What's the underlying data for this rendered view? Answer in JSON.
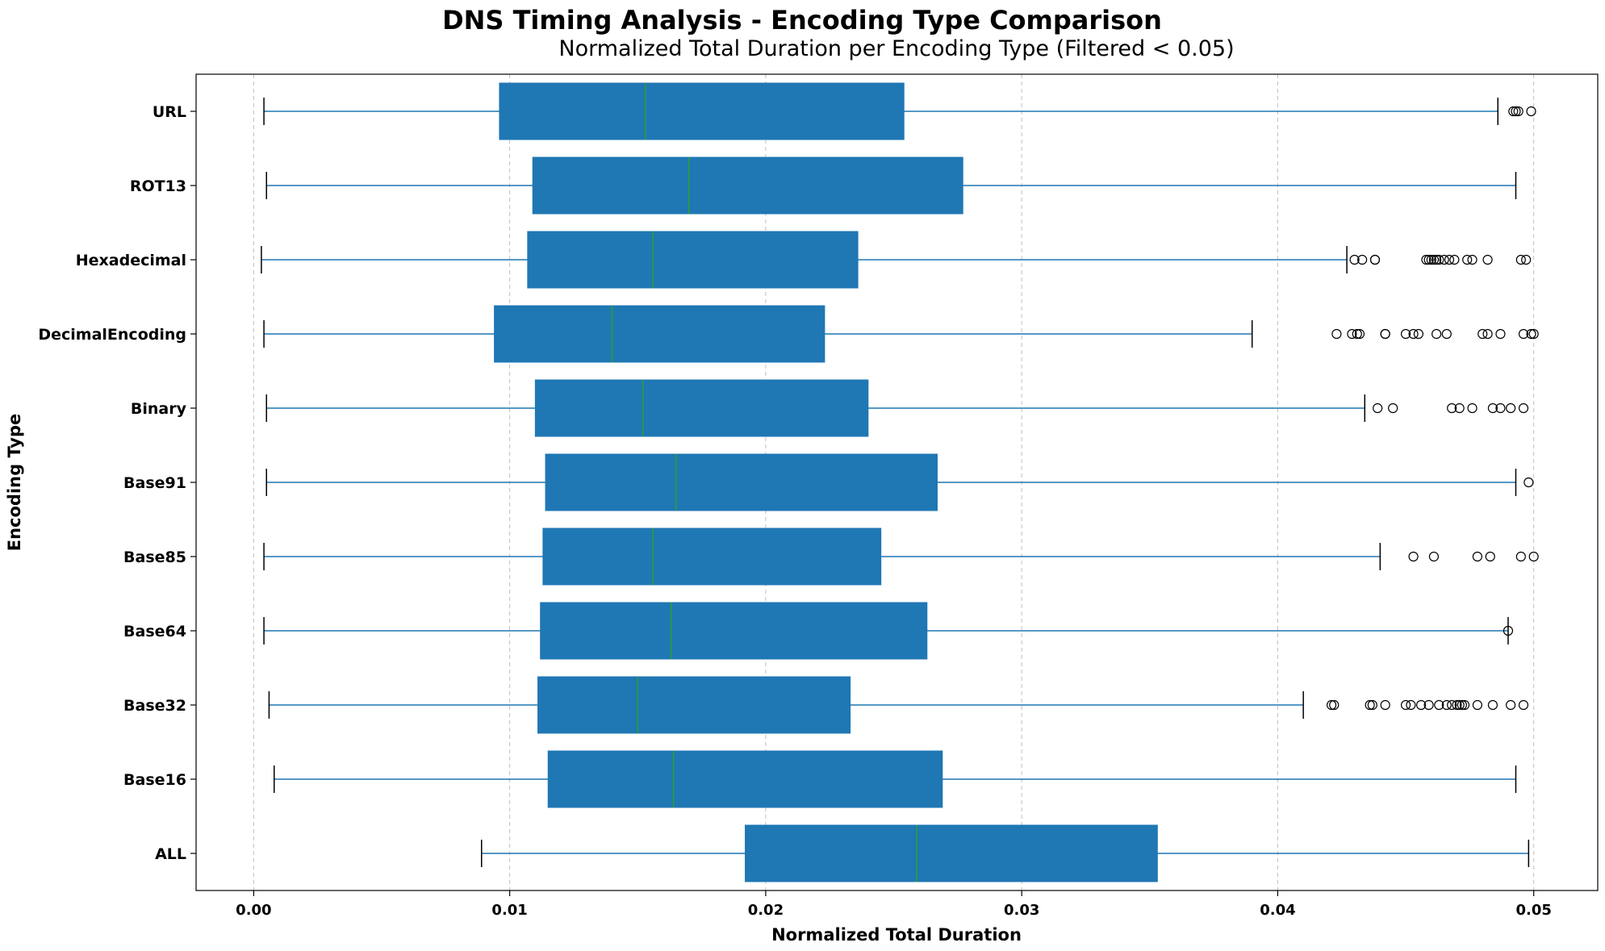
{
  "chart_data": {
    "type": "box",
    "orientation": "horizontal",
    "suptitle": "DNS Timing Analysis - Encoding Type Comparison",
    "title": "Normalized Total Duration per Encoding Type (Filtered < 0.05)",
    "xlabel": "Normalized Total Duration",
    "ylabel": "Encoding Type",
    "xlim": [
      -0.00225,
      0.0525
    ],
    "xticks": [
      0.0,
      0.01,
      0.02,
      0.03,
      0.04,
      0.05
    ],
    "xtick_labels": [
      "0.00",
      "0.01",
      "0.02",
      "0.03",
      "0.04",
      "0.05"
    ],
    "grid": "x-dashed",
    "colors": {
      "box": "#1f77b4",
      "median": "#2ca02c",
      "whisker": "#1f77b4",
      "cap": "#000000",
      "flier": "#000000",
      "grid": "#b0b0b0",
      "frame": "#000000"
    },
    "boxes": [
      {
        "label": "URL",
        "whislo": 0.0004,
        "q1": 0.0096,
        "med": 0.0153,
        "q3": 0.0254,
        "whishi": 0.0486,
        "fliers": [
          0.0492,
          0.0493,
          0.0494,
          0.0499
        ]
      },
      {
        "label": "ROT13",
        "whislo": 0.0005,
        "q1": 0.0109,
        "med": 0.017,
        "q3": 0.0277,
        "whishi": 0.0493,
        "fliers": []
      },
      {
        "label": "Hexadecimal",
        "whislo": 0.0003,
        "q1": 0.0107,
        "med": 0.0156,
        "q3": 0.0236,
        "whishi": 0.0427,
        "fliers": [
          0.043,
          0.0433,
          0.0438,
          0.0438,
          0.0458,
          0.0459,
          0.046,
          0.0461,
          0.0462,
          0.0463,
          0.0465,
          0.0467,
          0.0469,
          0.0474,
          0.0476,
          0.0482,
          0.0495,
          0.0497
        ]
      },
      {
        "label": "DecimalEncoding",
        "whislo": 0.0004,
        "q1": 0.0094,
        "med": 0.014,
        "q3": 0.0223,
        "whishi": 0.039,
        "fliers": [
          0.0423,
          0.0429,
          0.0431,
          0.0432,
          0.0442,
          0.0442,
          0.045,
          0.0453,
          0.0455,
          0.0462,
          0.0466,
          0.048,
          0.0482,
          0.0487,
          0.0496,
          0.0499,
          0.05
        ]
      },
      {
        "label": "Binary",
        "whislo": 0.0005,
        "q1": 0.011,
        "med": 0.0152,
        "q3": 0.024,
        "whishi": 0.0434,
        "fliers": [
          0.0439,
          0.0445,
          0.0468,
          0.0471,
          0.0476,
          0.0484,
          0.0487,
          0.0491,
          0.0496
        ]
      },
      {
        "label": "Base91",
        "whislo": 0.0005,
        "q1": 0.0114,
        "med": 0.0165,
        "q3": 0.0267,
        "whishi": 0.0493,
        "fliers": [
          0.0498
        ]
      },
      {
        "label": "Base85",
        "whislo": 0.0004,
        "q1": 0.0113,
        "med": 0.0156,
        "q3": 0.0245,
        "whishi": 0.044,
        "fliers": [
          0.0453,
          0.0461,
          0.0478,
          0.0483,
          0.0495,
          0.05
        ]
      },
      {
        "label": "Base64",
        "whislo": 0.0004,
        "q1": 0.0112,
        "med": 0.0163,
        "q3": 0.0263,
        "whishi": 0.049,
        "fliers": [
          0.049
        ]
      },
      {
        "label": "Base32",
        "whislo": 0.0006,
        "q1": 0.0111,
        "med": 0.015,
        "q3": 0.0233,
        "whishi": 0.041,
        "fliers": [
          0.0421,
          0.0422,
          0.0436,
          0.0437,
          0.0442,
          0.045,
          0.0452,
          0.0456,
          0.0459,
          0.0463,
          0.0466,
          0.0468,
          0.047,
          0.0471,
          0.0472,
          0.0473,
          0.0478,
          0.0484,
          0.0491,
          0.0496
        ]
      },
      {
        "label": "Base16",
        "whislo": 0.0008,
        "q1": 0.0115,
        "med": 0.0164,
        "q3": 0.0269,
        "whishi": 0.0493,
        "fliers": []
      },
      {
        "label": "ALL",
        "whislo": 0.0089,
        "q1": 0.0192,
        "med": 0.0259,
        "q3": 0.0353,
        "whishi": 0.0498,
        "fliers": []
      }
    ]
  }
}
